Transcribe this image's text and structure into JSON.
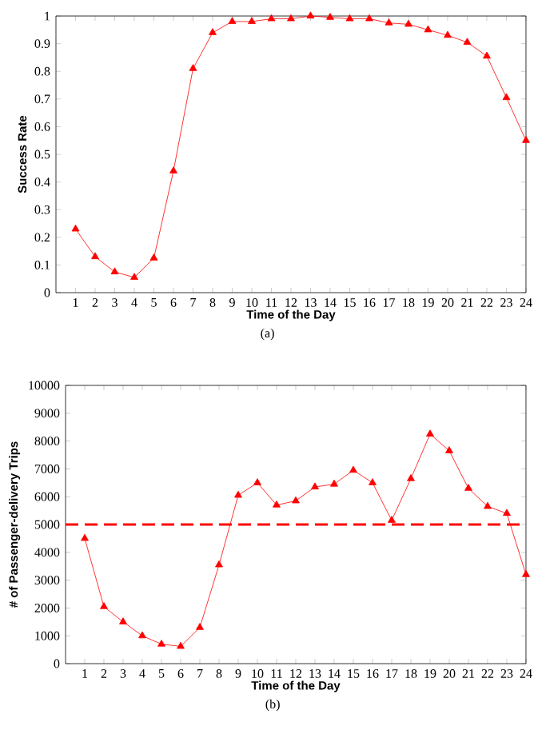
{
  "chart_data": [
    {
      "type": "line",
      "xlabel": "Time of the Day",
      "ylabel": "Success Rate",
      "annotations": [
        "(a)"
      ],
      "x": [
        1,
        2,
        3,
        4,
        5,
        6,
        7,
        8,
        9,
        10,
        11,
        12,
        13,
        14,
        15,
        16,
        17,
        18,
        19,
        20,
        21,
        22,
        23,
        24
      ],
      "series": [
        {
          "color": "#ff0000",
          "values": [
            0.23,
            0.13,
            0.075,
            0.055,
            0.125,
            0.44,
            0.81,
            0.94,
            0.98,
            0.98,
            0.99,
            0.99,
            1.0,
            0.995,
            0.99,
            0.99,
            0.975,
            0.97,
            0.95,
            0.93,
            0.905,
            0.855,
            0.705,
            0.55
          ]
        }
      ],
      "xlim": [
        0,
        24
      ],
      "xticks": [
        1,
        2,
        3,
        4,
        5,
        6,
        7,
        8,
        9,
        10,
        11,
        12,
        13,
        14,
        15,
        16,
        17,
        18,
        19,
        20,
        21,
        22,
        23,
        24
      ],
      "ylim": [
        0,
        1
      ],
      "yticks": [
        0,
        0.1,
        0.2,
        0.3,
        0.4,
        0.5,
        0.6,
        0.7,
        0.8,
        0.9,
        1
      ],
      "marker": "triangle",
      "line_style": "solid"
    },
    {
      "type": "line",
      "xlabel": "Time of the Day",
      "ylabel": "# of Passenger-delivery Trips",
      "annotations": [
        "(b)"
      ],
      "x": [
        1,
        2,
        3,
        4,
        5,
        6,
        7,
        8,
        9,
        10,
        11,
        12,
        13,
        14,
        15,
        16,
        17,
        18,
        19,
        20,
        21,
        22,
        23,
        24
      ],
      "series": [
        {
          "color": "#ff0000",
          "values": [
            4500,
            2050,
            1500,
            1000,
            700,
            620,
            1300,
            3550,
            6050,
            6500,
            5700,
            5850,
            6350,
            6450,
            6950,
            6500,
            5150,
            6650,
            8250,
            7650,
            6300,
            5650,
            5400,
            3200
          ]
        }
      ],
      "xlim": [
        0,
        24
      ],
      "xticks": [
        1,
        2,
        3,
        4,
        5,
        6,
        7,
        8,
        9,
        10,
        11,
        12,
        13,
        14,
        15,
        16,
        17,
        18,
        19,
        20,
        21,
        22,
        23,
        24
      ],
      "ylim": [
        0,
        10000
      ],
      "yticks": [
        0,
        1000,
        2000,
        3000,
        4000,
        5000,
        6000,
        7000,
        8000,
        9000,
        10000
      ],
      "ref_lines": [
        {
          "axis": "y",
          "value": 5000,
          "color": "#ff0000",
          "line_style": "dashed"
        }
      ],
      "marker": "triangle",
      "line_style": "solid"
    }
  ]
}
